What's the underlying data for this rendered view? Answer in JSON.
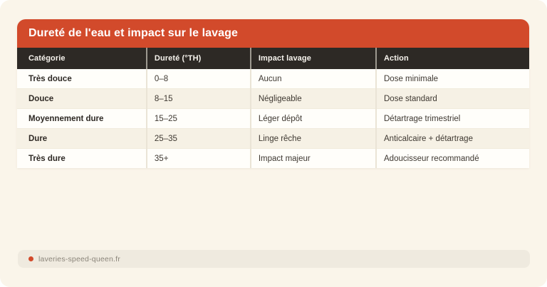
{
  "chart_data": {
    "type": "table",
    "title": "Dureté de l'eau et impact sur le lavage",
    "columns": [
      "Catégorie",
      "Dureté (°TH)",
      "Impact lavage",
      "Action"
    ],
    "rows": [
      [
        "Très douce",
        "0–8",
        "Aucun",
        "Dose minimale"
      ],
      [
        "Douce",
        "8–15",
        "Négligeable",
        "Dose standard"
      ],
      [
        "Moyennement dure",
        "15–25",
        "Léger dépôt",
        "Détartrage trimestriel"
      ],
      [
        "Dure",
        "25–35",
        "Linge rêche",
        "Anticalcaire + détartrage"
      ],
      [
        "Très dure",
        "35+",
        "Impact majeur",
        "Adoucisseur recommandé"
      ]
    ],
    "layout_hints": {
      "header_style": "dark bar under orange title bar",
      "row_striping": "alternating white and beige",
      "legend_position": "none",
      "grid": "vertical column dividers only"
    }
  },
  "footer": {
    "source": "laveries-speed-queen.fr"
  },
  "colors": {
    "accent_orange": "#d24a2b",
    "table_header_bg": "#2d2925",
    "page_background": "#faf5ea",
    "row_alt_background": "#f6f1e5",
    "footer_bar_background": "#efeadf",
    "footer_text": "#8b857a"
  }
}
